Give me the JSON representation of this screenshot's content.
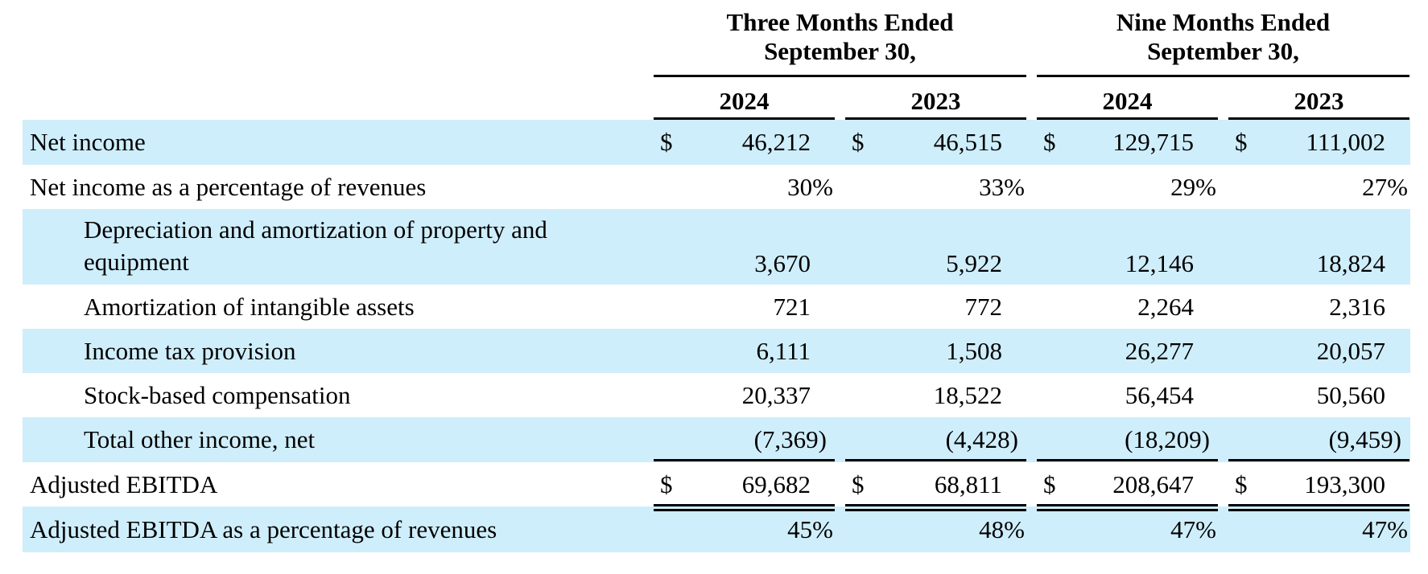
{
  "header": {
    "periods": [
      {
        "line1": "Three Months Ended",
        "line2": "September 30,"
      },
      {
        "line1": "Nine Months Ended",
        "line2": "September 30,"
      }
    ],
    "years": [
      "2024",
      "2023",
      "2024",
      "2023"
    ]
  },
  "currency_symbol": "$",
  "rows": [
    {
      "label": [
        "Net income"
      ],
      "indent": false,
      "shaded": true,
      "dollar": true,
      "values": [
        "46,212",
        "46,515",
        "129,715",
        "111,002"
      ],
      "style": "normal"
    },
    {
      "label": [
        "Net income as a percentage of revenues"
      ],
      "indent": false,
      "shaded": false,
      "dollar": false,
      "values": [
        "30%",
        "33%",
        "29%",
        "27%"
      ],
      "style": "percent"
    },
    {
      "label": [
        "Depreciation and amortization of property and",
        "equipment"
      ],
      "indent": true,
      "shaded": true,
      "dollar": false,
      "values": [
        "3,670",
        "5,922",
        "12,146",
        "18,824"
      ],
      "style": "normal"
    },
    {
      "label": [
        "Amortization of intangible assets"
      ],
      "indent": true,
      "shaded": false,
      "dollar": false,
      "values": [
        "721",
        "772",
        "2,264",
        "2,316"
      ],
      "style": "normal"
    },
    {
      "label": [
        "Income tax provision"
      ],
      "indent": true,
      "shaded": true,
      "dollar": false,
      "values": [
        "6,111",
        "1,508",
        "26,277",
        "20,057"
      ],
      "style": "normal"
    },
    {
      "label": [
        "Stock-based compensation"
      ],
      "indent": true,
      "shaded": false,
      "dollar": false,
      "values": [
        "20,337",
        "18,522",
        "56,454",
        "50,560"
      ],
      "style": "normal"
    },
    {
      "label": [
        "Total other income, net"
      ],
      "indent": true,
      "shaded": true,
      "dollar": false,
      "values": [
        "(7,369)",
        "(4,428)",
        "(18,209)",
        "(9,459)"
      ],
      "style": "paren"
    },
    {
      "label": [
        "Adjusted EBITDA"
      ],
      "indent": false,
      "shaded": false,
      "dollar": true,
      "values": [
        "69,682",
        "68,811",
        "208,647",
        "193,300"
      ],
      "style": "normal"
    },
    {
      "label": [
        "Adjusted EBITDA as a percentage of revenues"
      ],
      "indent": false,
      "shaded": true,
      "dollar": false,
      "values": [
        "45%",
        "48%",
        "47%",
        "47%"
      ],
      "style": "percent"
    }
  ],
  "colors": {
    "band": "#cfeefb",
    "text": "#000000"
  }
}
